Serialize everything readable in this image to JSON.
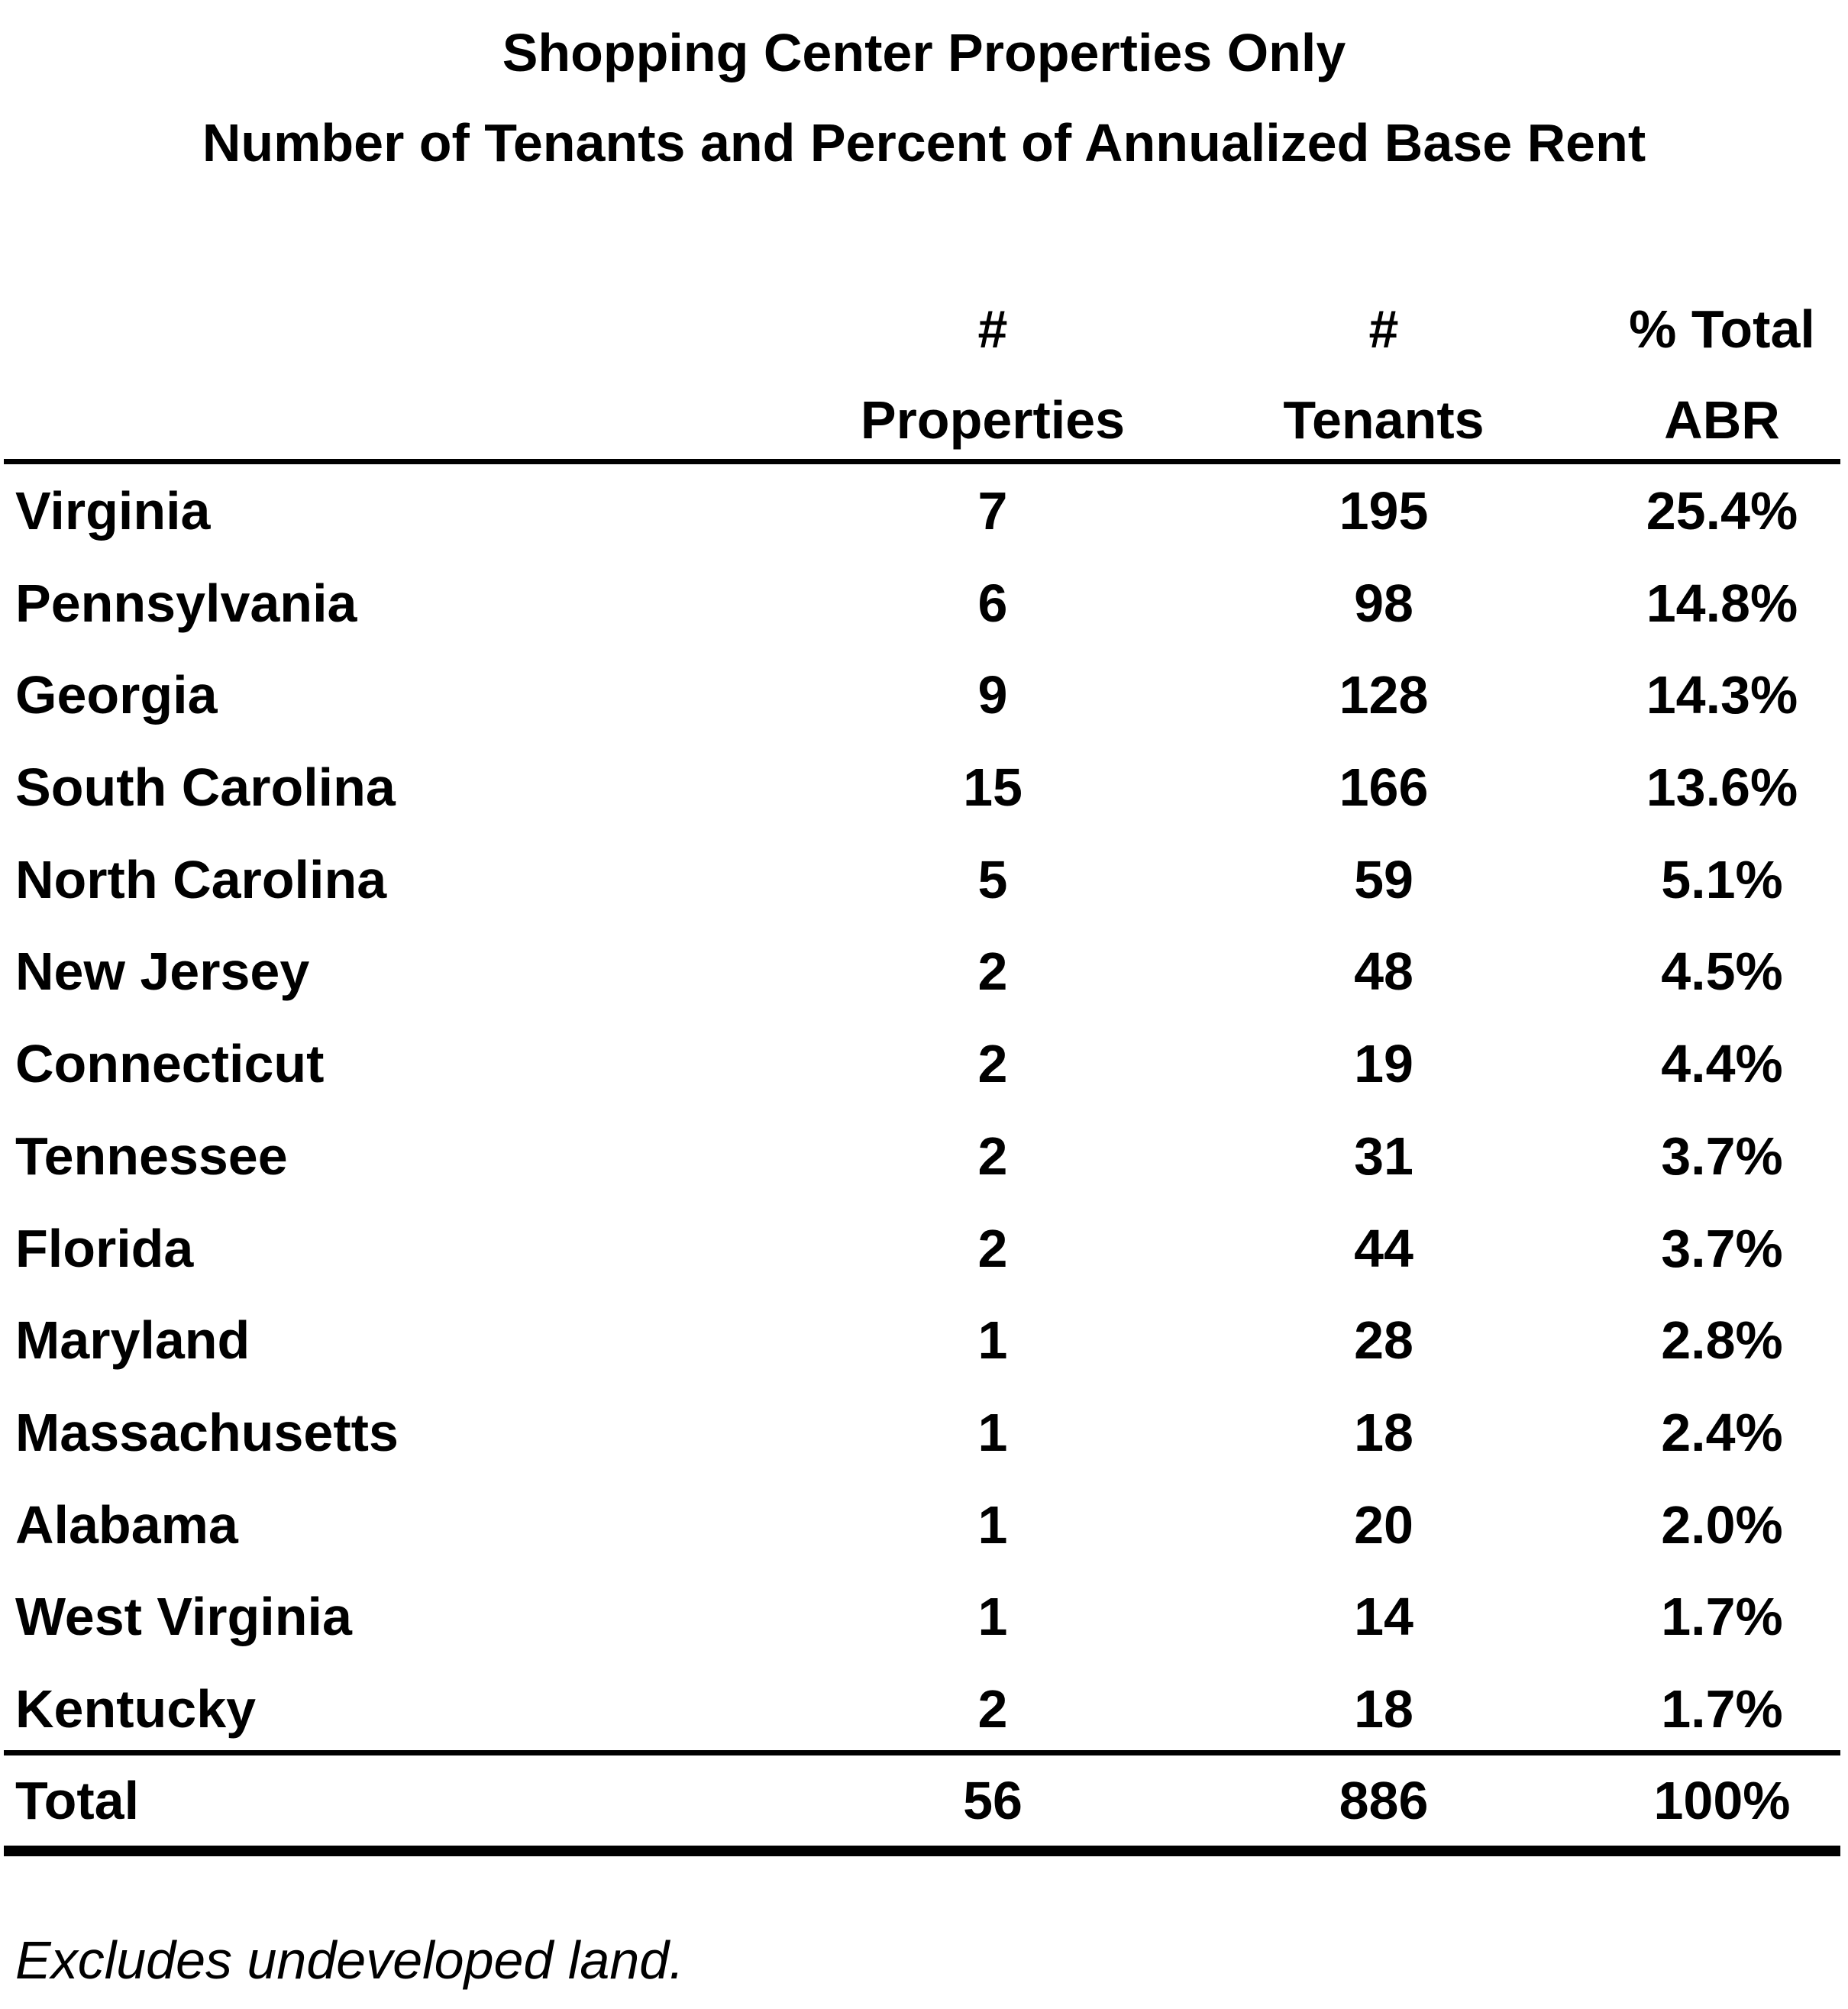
{
  "title_line1": "Shopping Center Properties Only",
  "title_line2": "Number of Tenants and Percent of Annualized Base Rent",
  "columns": {
    "properties": {
      "line1": "#",
      "line2": "Properties"
    },
    "tenants": {
      "line1": "#",
      "line2": "Tenants"
    },
    "abr": {
      "line1": "% Total",
      "line2": "ABR"
    }
  },
  "rows": [
    {
      "state": "Virginia",
      "properties": "7",
      "tenants": "195",
      "abr": "25.4%"
    },
    {
      "state": "Pennsylvania",
      "properties": "6",
      "tenants": "98",
      "abr": "14.8%"
    },
    {
      "state": "Georgia",
      "properties": "9",
      "tenants": "128",
      "abr": "14.3%"
    },
    {
      "state": "South Carolina",
      "properties": "15",
      "tenants": "166",
      "abr": "13.6%"
    },
    {
      "state": "North Carolina",
      "properties": "5",
      "tenants": "59",
      "abr": "5.1%"
    },
    {
      "state": "New Jersey",
      "properties": "2",
      "tenants": "48",
      "abr": "4.5%"
    },
    {
      "state": "Connecticut",
      "properties": "2",
      "tenants": "19",
      "abr": "4.4%"
    },
    {
      "state": "Tennessee",
      "properties": "2",
      "tenants": "31",
      "abr": "3.7%"
    },
    {
      "state": "Florida",
      "properties": "2",
      "tenants": "44",
      "abr": "3.7%"
    },
    {
      "state": "Maryland",
      "properties": "1",
      "tenants": "28",
      "abr": "2.8%"
    },
    {
      "state": "Massachusetts",
      "properties": "1",
      "tenants": "18",
      "abr": "2.4%"
    },
    {
      "state": "Alabama",
      "properties": "1",
      "tenants": "20",
      "abr": "2.0%"
    },
    {
      "state": "West Virginia",
      "properties": "1",
      "tenants": "14",
      "abr": "1.7%"
    },
    {
      "state": "Kentucky",
      "properties": "2",
      "tenants": "18",
      "abr": "1.7%"
    }
  ],
  "total": {
    "label": "Total",
    "properties": "56",
    "tenants": "886",
    "abr": "100%"
  },
  "footnote": "Excludes undeveloped land."
}
